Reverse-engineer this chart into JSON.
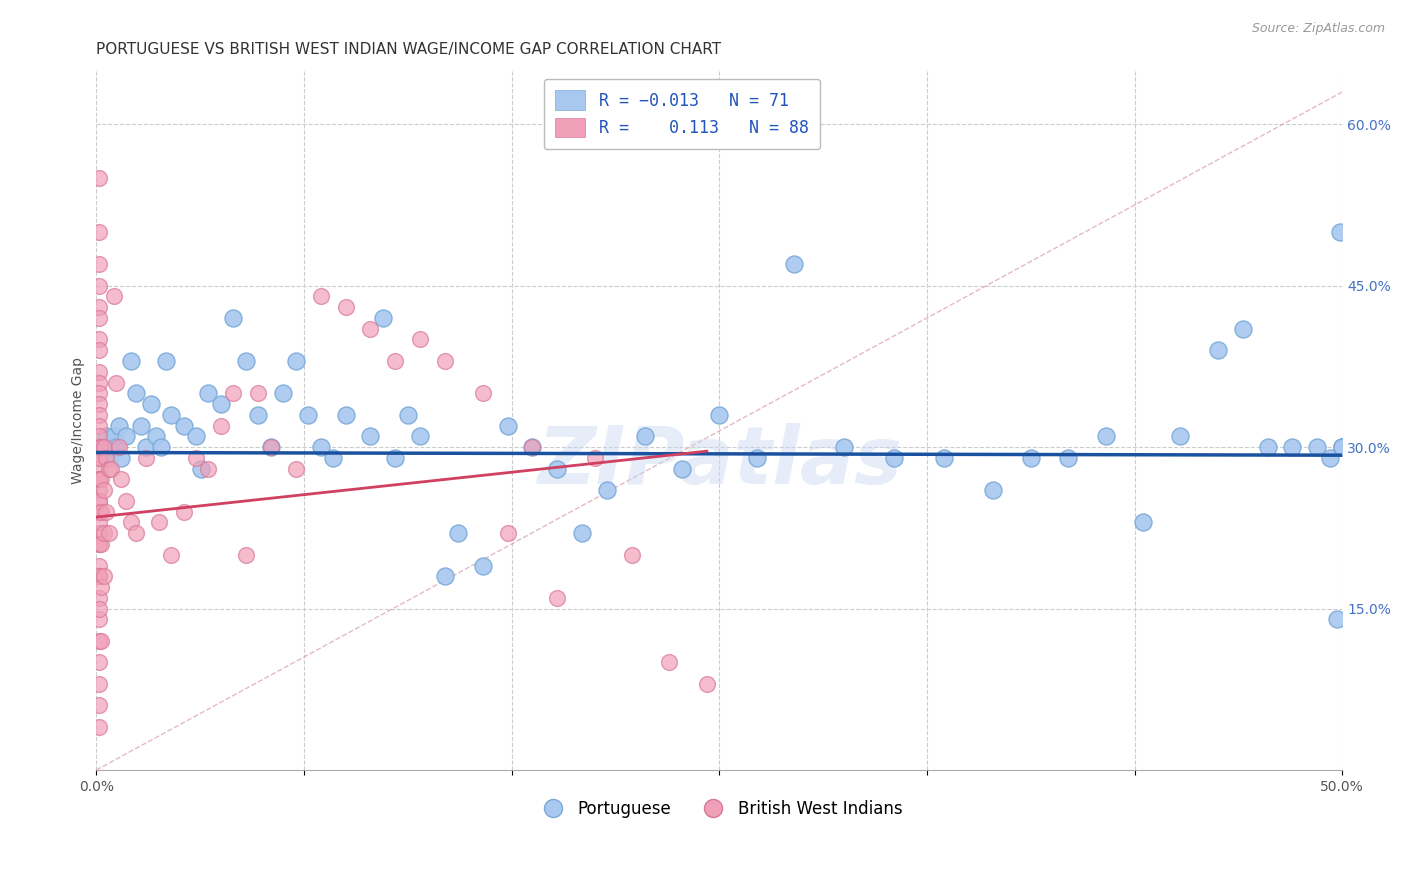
{
  "title": "PORTUGUESE VS BRITISH WEST INDIAN WAGE/INCOME GAP CORRELATION CHART",
  "source": "Source: ZipAtlas.com",
  "ylabel": "Wage/Income Gap",
  "xlim": [
    0.0,
    0.5
  ],
  "ylim": [
    0.0,
    0.65
  ],
  "xticks": [
    0.0,
    0.0833,
    0.1667,
    0.25,
    0.3333,
    0.4167,
    0.5
  ],
  "xticklabels": [
    "0.0%",
    "",
    "",
    "",
    "",
    "",
    "50.0%"
  ],
  "yticks_right": [
    0.15,
    0.3,
    0.45,
    0.6
  ],
  "ytick_labels_right": [
    "15.0%",
    "30.0%",
    "45.0%",
    "60.0%"
  ],
  "blue_color": "#A8C8F0",
  "blue_edge_color": "#7AAAD8",
  "pink_color": "#F0A0B8",
  "pink_edge_color": "#D87898",
  "blue_line_color": "#1A52A0",
  "pink_line_color": "#D04060",
  "pink_dash_color": "#E08898",
  "background_color": "#FFFFFF",
  "watermark": "ZIPatlas",
  "blue_R": "-0.013",
  "blue_N": "71",
  "pink_R": "0.113",
  "pink_N": "88",
  "blue_points_x": [
    0.003,
    0.004,
    0.005,
    0.006,
    0.007,
    0.008,
    0.009,
    0.01,
    0.012,
    0.014,
    0.016,
    0.018,
    0.02,
    0.022,
    0.024,
    0.026,
    0.028,
    0.03,
    0.035,
    0.04,
    0.042,
    0.045,
    0.05,
    0.055,
    0.06,
    0.065,
    0.07,
    0.075,
    0.08,
    0.085,
    0.09,
    0.095,
    0.1,
    0.11,
    0.115,
    0.12,
    0.125,
    0.13,
    0.14,
    0.145,
    0.155,
    0.165,
    0.175,
    0.185,
    0.195,
    0.205,
    0.22,
    0.235,
    0.25,
    0.265,
    0.28,
    0.3,
    0.32,
    0.34,
    0.36,
    0.375,
    0.39,
    0.405,
    0.42,
    0.435,
    0.45,
    0.46,
    0.47,
    0.48,
    0.49,
    0.495,
    0.498,
    0.499,
    0.5,
    0.5,
    0.5
  ],
  "blue_points_y": [
    0.3,
    0.31,
    0.29,
    0.3,
    0.31,
    0.3,
    0.32,
    0.29,
    0.31,
    0.38,
    0.35,
    0.32,
    0.3,
    0.34,
    0.31,
    0.3,
    0.38,
    0.33,
    0.32,
    0.31,
    0.28,
    0.35,
    0.34,
    0.42,
    0.38,
    0.33,
    0.3,
    0.35,
    0.38,
    0.33,
    0.3,
    0.29,
    0.33,
    0.31,
    0.42,
    0.29,
    0.33,
    0.31,
    0.18,
    0.22,
    0.19,
    0.32,
    0.3,
    0.28,
    0.22,
    0.26,
    0.31,
    0.28,
    0.33,
    0.29,
    0.47,
    0.3,
    0.29,
    0.29,
    0.26,
    0.29,
    0.29,
    0.31,
    0.23,
    0.31,
    0.39,
    0.41,
    0.3,
    0.3,
    0.3,
    0.29,
    0.14,
    0.5,
    0.3,
    0.3,
    0.3
  ],
  "pink_points_x": [
    0.001,
    0.001,
    0.001,
    0.001,
    0.001,
    0.001,
    0.001,
    0.001,
    0.001,
    0.001,
    0.001,
    0.001,
    0.001,
    0.001,
    0.001,
    0.001,
    0.001,
    0.001,
    0.001,
    0.001,
    0.001,
    0.001,
    0.001,
    0.001,
    0.001,
    0.001,
    0.001,
    0.001,
    0.001,
    0.001,
    0.001,
    0.001,
    0.001,
    0.001,
    0.001,
    0.001,
    0.001,
    0.001,
    0.001,
    0.001,
    0.002,
    0.002,
    0.002,
    0.002,
    0.002,
    0.002,
    0.003,
    0.003,
    0.003,
    0.003,
    0.004,
    0.004,
    0.005,
    0.005,
    0.006,
    0.007,
    0.008,
    0.009,
    0.01,
    0.012,
    0.014,
    0.016,
    0.02,
    0.025,
    0.03,
    0.035,
    0.04,
    0.045,
    0.05,
    0.055,
    0.06,
    0.065,
    0.07,
    0.08,
    0.09,
    0.1,
    0.11,
    0.12,
    0.13,
    0.14,
    0.155,
    0.165,
    0.175,
    0.185,
    0.2,
    0.215,
    0.23,
    0.245
  ],
  "pink_points_y": [
    0.55,
    0.5,
    0.47,
    0.45,
    0.43,
    0.42,
    0.4,
    0.39,
    0.37,
    0.36,
    0.35,
    0.34,
    0.33,
    0.32,
    0.31,
    0.3,
    0.29,
    0.28,
    0.27,
    0.26,
    0.25,
    0.24,
    0.22,
    0.21,
    0.19,
    0.18,
    0.16,
    0.14,
    0.12,
    0.1,
    0.08,
    0.06,
    0.04,
    0.29,
    0.27,
    0.25,
    0.23,
    0.21,
    0.18,
    0.15,
    0.3,
    0.27,
    0.24,
    0.21,
    0.17,
    0.12,
    0.3,
    0.26,
    0.22,
    0.18,
    0.29,
    0.24,
    0.28,
    0.22,
    0.28,
    0.44,
    0.36,
    0.3,
    0.27,
    0.25,
    0.23,
    0.22,
    0.29,
    0.23,
    0.2,
    0.24,
    0.29,
    0.28,
    0.32,
    0.35,
    0.2,
    0.35,
    0.3,
    0.28,
    0.44,
    0.43,
    0.41,
    0.38,
    0.4,
    0.38,
    0.35,
    0.22,
    0.3,
    0.16,
    0.29,
    0.2,
    0.1,
    0.08
  ],
  "title_fontsize": 11,
  "axis_fontsize": 10,
  "tick_fontsize": 10,
  "legend_fontsize": 12
}
